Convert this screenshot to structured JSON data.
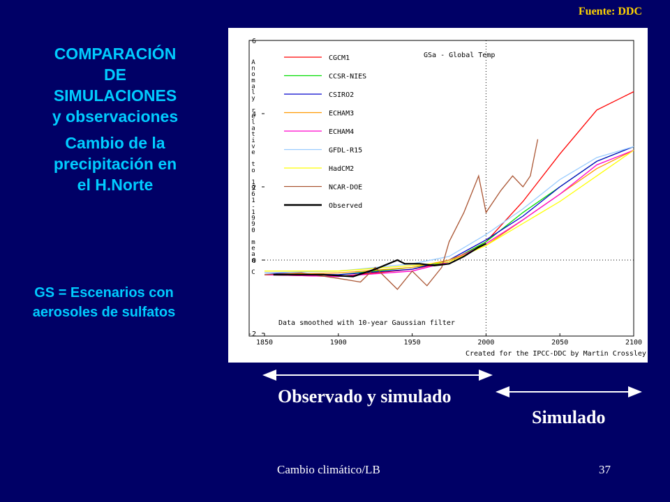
{
  "slide": {
    "source": "Fuente: DDC",
    "title_line1": "COMPARACIÓN",
    "title_line2": "DE",
    "title_line3": "SIMULACIONES",
    "title_line4": "y observaciones",
    "subtitle_line1": "Cambio de la",
    "subtitle_line2": "precipitación en",
    "subtitle_line3": "el H.Norte",
    "gs_line1": "GS = Escenarios con",
    "gs_line2": "aerosoles de sulfatos",
    "observed_label": "Observado y simulado",
    "simulated_label": "Simulado",
    "footer": "Cambio climático/LB",
    "page_number": "37",
    "title_color": "#00ccff",
    "source_color": "#ffd400",
    "background_color": "#000066"
  },
  "chart_data": {
    "type": "line",
    "title": "GSa - Global Temp",
    "ylabel": "Anomaly relative to 1961-1990 mean C",
    "note_bottom": "Data smoothed with 10-year Gaussian filter",
    "credit": "Created for the IPCC-DDC by Martin Crossley",
    "xlim": [
      1850,
      2100
    ],
    "ylim": [
      -2,
      6
    ],
    "x_ticks": [
      "1850",
      "1900",
      "1950",
      "2000",
      "2050",
      "2100"
    ],
    "y_ticks": [
      "-2",
      "0",
      "2",
      "4",
      "6"
    ],
    "divider_year": 2000,
    "series": [
      {
        "name": "CGCM1",
        "color": "#ff0000",
        "x": [
          1850,
          1900,
          1950,
          1975,
          2000,
          2025,
          2050,
          2075,
          2100
        ],
        "y": [
          -0.4,
          -0.45,
          -0.25,
          -0.05,
          0.5,
          1.6,
          2.9,
          4.1,
          4.6
        ]
      },
      {
        "name": "CCSR-NIES",
        "color": "#00dd00",
        "x": [
          1850,
          1900,
          1950,
          1975,
          2000,
          2025,
          2050,
          2075,
          2100
        ],
        "y": [
          -0.4,
          -0.4,
          -0.2,
          -0.05,
          0.5,
          1.3,
          2.0,
          2.7,
          3.1
        ]
      },
      {
        "name": "CSIRO2",
        "color": "#0000cc",
        "x": [
          1850,
          1900,
          1950,
          1975,
          2000,
          2025,
          2050,
          2075,
          2100
        ],
        "y": [
          -0.35,
          -0.4,
          -0.25,
          0.0,
          0.55,
          1.2,
          2.0,
          2.7,
          3.1
        ]
      },
      {
        "name": "ECHAM3",
        "color": "#ff9900",
        "x": [
          1850,
          1900,
          1950,
          1975,
          2000,
          2025,
          2050,
          2075,
          2100
        ],
        "y": [
          -0.4,
          -0.35,
          -0.2,
          0.0,
          0.4,
          1.1,
          1.8,
          2.5,
          3.0
        ]
      },
      {
        "name": "ECHAM4",
        "color": "#ff00cc",
        "x": [
          1850,
          1900,
          1950,
          1975,
          2000,
          2025,
          2050,
          2075,
          2100
        ],
        "y": [
          -0.4,
          -0.45,
          -0.3,
          -0.05,
          0.45,
          1.1,
          1.8,
          2.6,
          3.0
        ]
      },
      {
        "name": "GFDL-R15",
        "color": "#99ccff",
        "x": [
          1850,
          1900,
          1950,
          1975,
          2000,
          2025,
          2050,
          2075,
          2100
        ],
        "y": [
          -0.35,
          -0.3,
          -0.1,
          0.1,
          0.7,
          1.4,
          2.2,
          2.8,
          3.1
        ]
      },
      {
        "name": "HadCM2",
        "color": "#ffff00",
        "x": [
          1850,
          1900,
          1950,
          1975,
          2000,
          2025,
          2050,
          2075,
          2100
        ],
        "y": [
          -0.3,
          -0.3,
          -0.15,
          -0.05,
          0.4,
          1.0,
          1.6,
          2.3,
          3.0
        ]
      },
      {
        "name": "NCAR-DOE",
        "color": "#aa5533",
        "x": [
          1850,
          1875,
          1900,
          1915,
          1925,
          1940,
          1950,
          1960,
          1970,
          1975,
          1985,
          1995,
          2000,
          2010,
          2018,
          2025,
          2030,
          2035
        ],
        "y": [
          -0.4,
          -0.35,
          -0.5,
          -0.6,
          -0.2,
          -0.8,
          -0.3,
          -0.7,
          -0.2,
          0.5,
          1.3,
          2.3,
          1.3,
          1.9,
          2.3,
          2.0,
          2.3,
          3.3
        ]
      },
      {
        "name": "Observed",
        "color": "#000000",
        "x": [
          1856,
          1870,
          1890,
          1910,
          1925,
          1940,
          1945,
          1955,
          1965,
          1975,
          1985,
          1995,
          2000
        ],
        "y": [
          -0.4,
          -0.4,
          -0.4,
          -0.45,
          -0.25,
          0.0,
          -0.1,
          -0.1,
          -0.15,
          -0.1,
          0.1,
          0.35,
          0.45
        ]
      }
    ]
  }
}
